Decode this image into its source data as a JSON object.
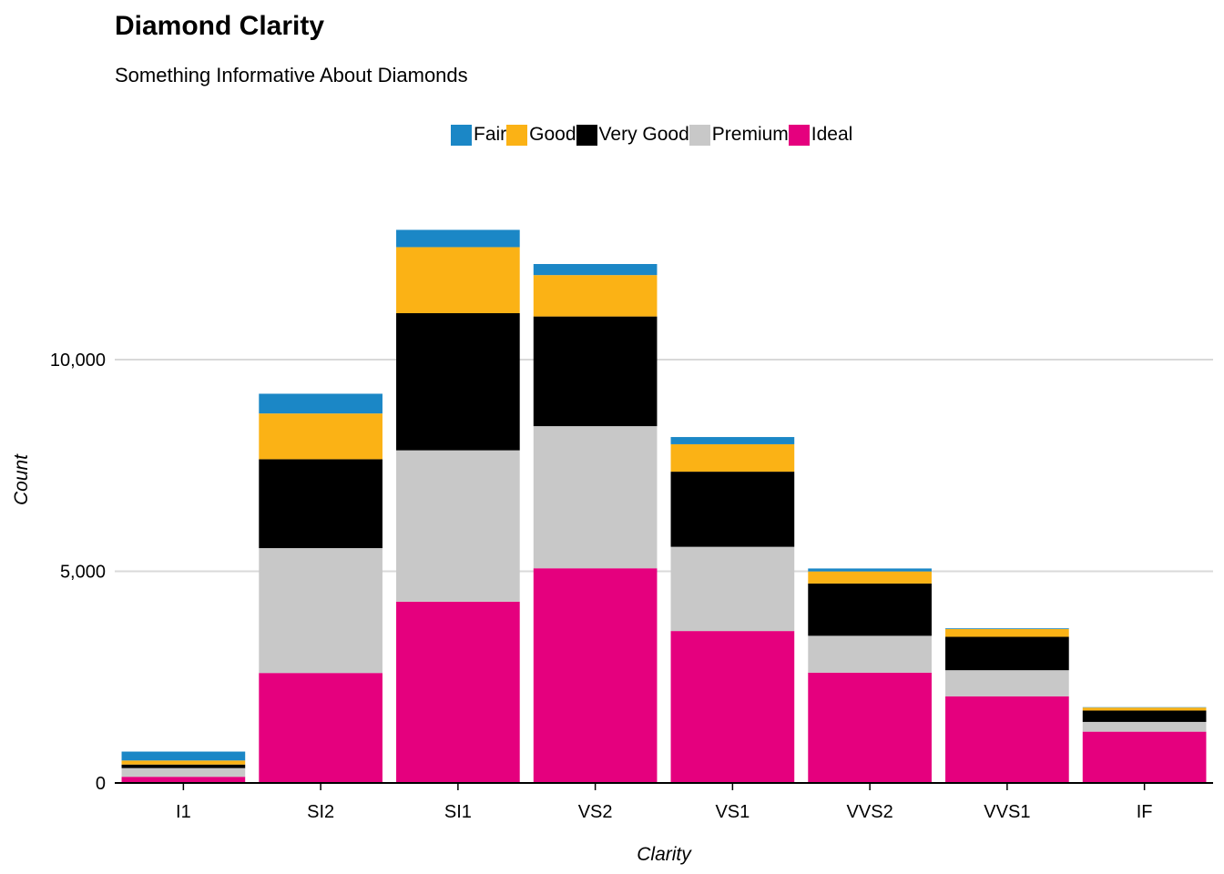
{
  "chart_data": {
    "type": "bar",
    "stacked": true,
    "title": "Diamond Clarity",
    "subtitle": "Something Informative About Diamonds",
    "xlabel": "Clarity",
    "ylabel": "Count",
    "categories": [
      "I1",
      "SI2",
      "SI1",
      "VS2",
      "VS1",
      "VVS2",
      "VVS1",
      "IF"
    ],
    "series": [
      {
        "name": "Ideal",
        "color": "#E5007E",
        "values": [
          146,
          2598,
          4282,
          5071,
          3589,
          2606,
          2047,
          1212
        ]
      },
      {
        "name": "Premium",
        "color": "#C8C8C8",
        "values": [
          205,
          2949,
          3575,
          3357,
          1989,
          870,
          616,
          230
        ]
      },
      {
        "name": "Very Good",
        "color": "#000000",
        "values": [
          84,
          2100,
          3240,
          2591,
          1775,
          1235,
          789,
          268
        ]
      },
      {
        "name": "Good",
        "color": "#FBB215",
        "values": [
          96,
          1081,
          1560,
          978,
          648,
          286,
          186,
          71
        ]
      },
      {
        "name": "Fair",
        "color": "#1B87C6",
        "values": [
          210,
          466,
          408,
          261,
          170,
          69,
          17,
          9
        ]
      }
    ],
    "legend_order": [
      "Fair",
      "Good",
      "Very Good",
      "Premium",
      "Ideal"
    ],
    "yticks": [
      0,
      5000,
      10000
    ],
    "ytick_labels": [
      "0",
      "5,000",
      "10,000"
    ],
    "ylim": [
      0,
      13500
    ],
    "grid": "horizontal",
    "legend_position": "top"
  }
}
